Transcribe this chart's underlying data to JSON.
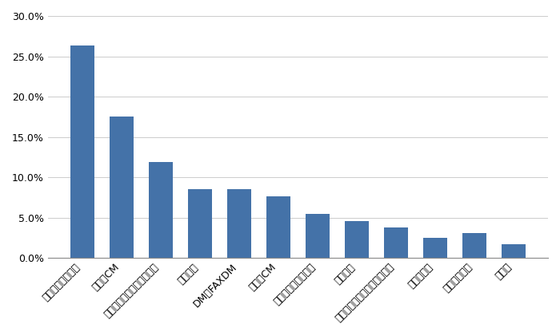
{
  "categories": [
    "展示会・イベント",
    "テレビCM",
    "製品発表会・自社セミナー",
    "雑誌広告",
    "DM・FAXDM",
    "ラジオCM",
    "テレマーケティング",
    "新聞広告",
    "交通広告・ディスプレイ広告",
    "折込チラシ",
    "サンプリング",
    "その他"
  ],
  "values": [
    0.263,
    0.175,
    0.119,
    0.085,
    0.085,
    0.076,
    0.054,
    0.046,
    0.038,
    0.025,
    0.031,
    0.017
  ],
  "bar_color": "#4472a8",
  "ylim": [
    0,
    0.3
  ],
  "yticks": [
    0.0,
    0.05,
    0.1,
    0.15,
    0.2,
    0.25,
    0.3
  ],
  "background_color": "#ffffff",
  "grid_color": "#cccccc"
}
